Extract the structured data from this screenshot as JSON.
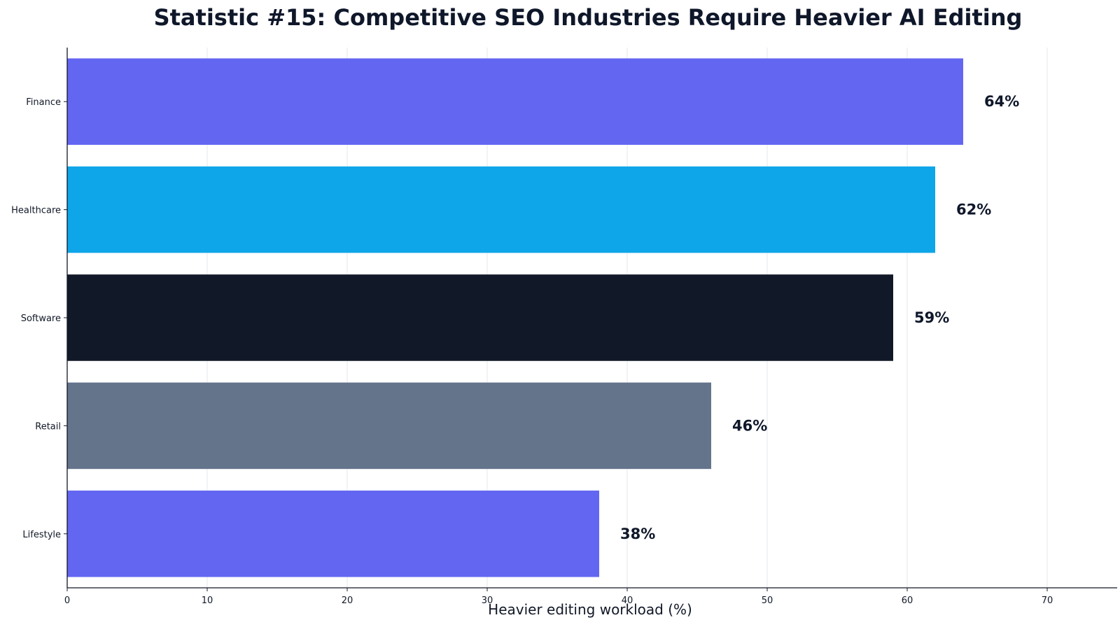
{
  "chart_data": {
    "type": "bar",
    "orientation": "horizontal",
    "title": "Statistic #15: Competitive SEO Industries Require Heavier AI Editing",
    "xlabel": "Heavier editing workload (%)",
    "ylabel": "",
    "categories": [
      "Finance",
      "Healthcare",
      "Software",
      "Retail",
      "Lifestyle"
    ],
    "values": [
      64,
      62,
      59,
      46,
      38
    ],
    "value_labels": [
      "64%",
      "62%",
      "59%",
      "46%",
      "38%"
    ],
    "colors": [
      "#6366f1",
      "#0ea5e9",
      "#111827",
      "#64748b",
      "#6366f1"
    ],
    "xlim": [
      0,
      75
    ],
    "xticks": [
      0,
      10,
      20,
      30,
      40,
      50,
      60,
      70
    ],
    "xtick_labels": [
      "0",
      "10",
      "20",
      "30",
      "40",
      "50",
      "60",
      "70"
    ],
    "grid": "vertical",
    "legend": "none"
  }
}
